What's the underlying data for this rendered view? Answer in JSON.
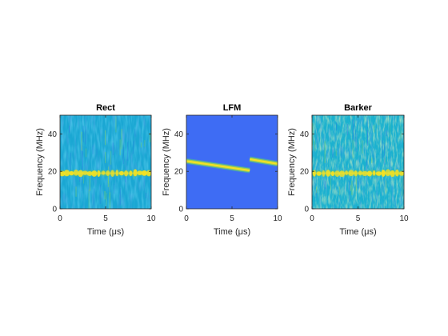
{
  "figure": {
    "background": "#ffffff"
  },
  "chart_data": [
    {
      "type": "heatmap",
      "title": "Rect",
      "xlabel": "Time (μs)",
      "ylabel": "Frequency (MHz)",
      "xlim": [
        0,
        10
      ],
      "ylim": [
        0,
        50
      ],
      "xticks": [
        0,
        5,
        10
      ],
      "yticks": [
        0,
        20,
        40
      ],
      "colormap": "parula",
      "background_color": "#1aa7d3",
      "features": [
        {
          "kind": "band",
          "freq_mhz": 19,
          "t_start_us": 0,
          "t_end_us": 10,
          "color": "#f3e124",
          "pulsed": true
        }
      ]
    },
    {
      "type": "heatmap",
      "title": "LFM",
      "xlabel": "Time (μs)",
      "ylabel": "Frequency (MHz)",
      "xlim": [
        0,
        10
      ],
      "ylim": [
        0,
        50
      ],
      "xticks": [
        0,
        5,
        10
      ],
      "yticks": [
        0,
        20,
        40
      ],
      "colormap": "parula",
      "background_color": "#3e6cf4",
      "features": [
        {
          "kind": "sweep",
          "t_start_us": 0,
          "t_end_us": 6.95,
          "f_start_mhz": 25.5,
          "f_end_mhz": 20.5,
          "color": "#f3e124"
        },
        {
          "kind": "sweep",
          "t_start_us": 6.95,
          "t_end_us": 10,
          "f_start_mhz": 26.5,
          "f_end_mhz": 24.0,
          "color": "#f3e124"
        }
      ]
    },
    {
      "type": "heatmap",
      "title": "Barker",
      "xlabel": "Time (μs)",
      "ylabel": "Frequency (MHz)",
      "xlim": [
        0,
        10
      ],
      "ylim": [
        0,
        50
      ],
      "xticks": [
        0,
        5,
        10
      ],
      "yticks": [
        0,
        20,
        40
      ],
      "colormap": "parula",
      "background_color": "#1ab1cf",
      "features": [
        {
          "kind": "band",
          "freq_mhz": 19,
          "t_start_us": 0,
          "t_end_us": 10,
          "color": "#f3e124",
          "pulsed": true
        }
      ]
    }
  ]
}
